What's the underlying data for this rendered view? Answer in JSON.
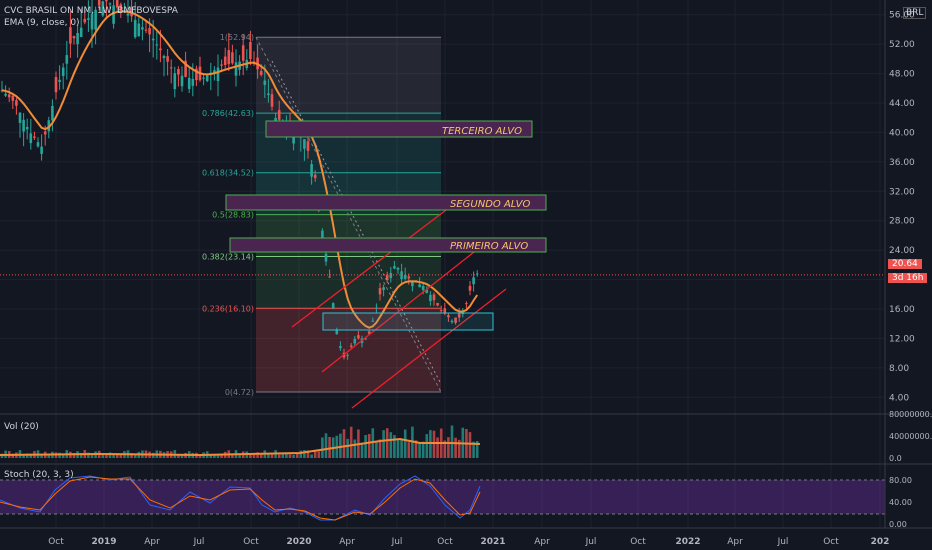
{
  "header": {
    "symbol_line": "CVC BRASIL ON NM, 1W, BMFBOVESPA",
    "ema_line": "EMA (9, close, 0)",
    "currency": "BRL"
  },
  "price_panel": {
    "y_ticks": [
      "56.00",
      "52.00",
      "48.00",
      "44.00",
      "40.00",
      "36.00",
      "32.00",
      "28.00",
      "24.00",
      "20.00",
      "16.00",
      "12.00",
      "8.00",
      "4.00"
    ],
    "last_price": "20.64",
    "countdown": "3d 16h"
  },
  "fib": {
    "levels": [
      {
        "label": "1(52.94)",
        "value": 52.94
      },
      {
        "label": "0.786(42.63)",
        "value": 42.63
      },
      {
        "label": "0.618(34.52)",
        "value": 34.52
      },
      {
        "label": "0.5(28.83)",
        "value": 28.83
      },
      {
        "label": "0.382(23.14)",
        "value": 23.14
      },
      {
        "label": "0.236(16.10)",
        "value": 16.1
      },
      {
        "label": "0(4.72)",
        "value": 4.72
      }
    ]
  },
  "targets": [
    {
      "label": "TERCEIRO ALVO",
      "value": 39.0
    },
    {
      "label": "SEGUNDO ALVO",
      "value": 28.5
    },
    {
      "label": "PRIMEIRO ALVO",
      "value": 22.3
    }
  ],
  "volume_panel": {
    "title": "Vol (20)",
    "y_ticks": [
      "80000000.0",
      "40000000.0",
      "0.0"
    ]
  },
  "stoch_panel": {
    "title": "Stoch (20, 3, 3)",
    "y_ticks": [
      "80.00",
      "40.00",
      "0.00"
    ]
  },
  "x_axis": {
    "ticks": [
      "Oct",
      "2019",
      "Apr",
      "Jul",
      "Oct",
      "2020",
      "Apr",
      "Jul",
      "Oct",
      "2021",
      "Apr",
      "Jul",
      "Oct",
      "2022",
      "Apr",
      "Jul",
      "Oct",
      "202"
    ]
  },
  "colors": {
    "up": "#26a69a",
    "down": "#ef5350",
    "ema": "#f28b36",
    "background": "#131722",
    "target_border": "#4caf50",
    "target_fill": "#4a2550",
    "support_border": "#2ac5d6"
  },
  "chart_data": {
    "type": "candlestick",
    "title": "CVC BRASIL ON NM, 1W, BMFBOVESPA",
    "ylim": [
      2,
      58
    ],
    "approximate_close_path": [
      {
        "x": "2018-08",
        "y": 46
      },
      {
        "x": "2018-10",
        "y": 38
      },
      {
        "x": "2019-01",
        "y": 55
      },
      {
        "x": "2019-04",
        "y": 53
      },
      {
        "x": "2019-07",
        "y": 47
      },
      {
        "x": "2019-10",
        "y": 50
      },
      {
        "x": "2019-11",
        "y": 43
      },
      {
        "x": "2020-01",
        "y": 38
      },
      {
        "x": "2020-02",
        "y": 25
      },
      {
        "x": "2020-03",
        "y": 8
      },
      {
        "x": "2020-05",
        "y": 12
      },
      {
        "x": "2020-06",
        "y": 20
      },
      {
        "x": "2020-08",
        "y": 18
      },
      {
        "x": "2020-10",
        "y": 13
      },
      {
        "x": "2020-11",
        "y": 20.64
      }
    ],
    "last_close": 20.64
  }
}
